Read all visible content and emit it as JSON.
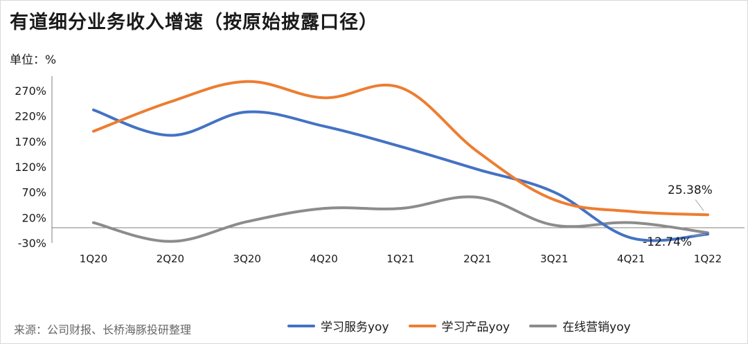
{
  "header": {
    "title": "有道细分业务收入增速（按原始披露口径）",
    "unit": "单位：%"
  },
  "footer": {
    "source": "来源：公司财报、长桥海豚投研整理"
  },
  "colors": {
    "series_blue": "#4472c4",
    "series_orange": "#ed7d31",
    "series_gray": "#8c8c8c"
  },
  "chart_data": {
    "type": "line",
    "categories": [
      "1Q20",
      "2Q20",
      "3Q20",
      "4Q20",
      "1Q21",
      "2Q21",
      "3Q21",
      "4Q21",
      "1Q22"
    ],
    "series": [
      {
        "name": "学习服务yoy",
        "color": "#4472c4",
        "values": [
          232,
          182,
          228,
          200,
          160,
          115,
          70,
          -20,
          -12.74
        ]
      },
      {
        "name": "学习产品yoy",
        "color": "#ed7d31",
        "values": [
          190,
          248,
          288,
          256,
          276,
          150,
          55,
          32,
          25.38
        ]
      },
      {
        "name": "在线营销yoy",
        "color": "#8c8c8c",
        "values": [
          10,
          -27,
          12,
          38,
          38,
          60,
          5,
          10,
          -10
        ]
      }
    ],
    "y_ticks": [
      "-30%",
      "20%",
      "70%",
      "120%",
      "170%",
      "220%",
      "270%"
    ],
    "y_tick_values": [
      -30,
      20,
      70,
      120,
      170,
      220,
      270
    ],
    "ylim": [
      -30,
      300
    ],
    "data_labels": [
      {
        "series": 1,
        "index": 8,
        "text": "25.38%"
      },
      {
        "series": 0,
        "index": 8,
        "text": "-12.74%"
      }
    ],
    "legend_position": "bottom",
    "grid": false
  }
}
